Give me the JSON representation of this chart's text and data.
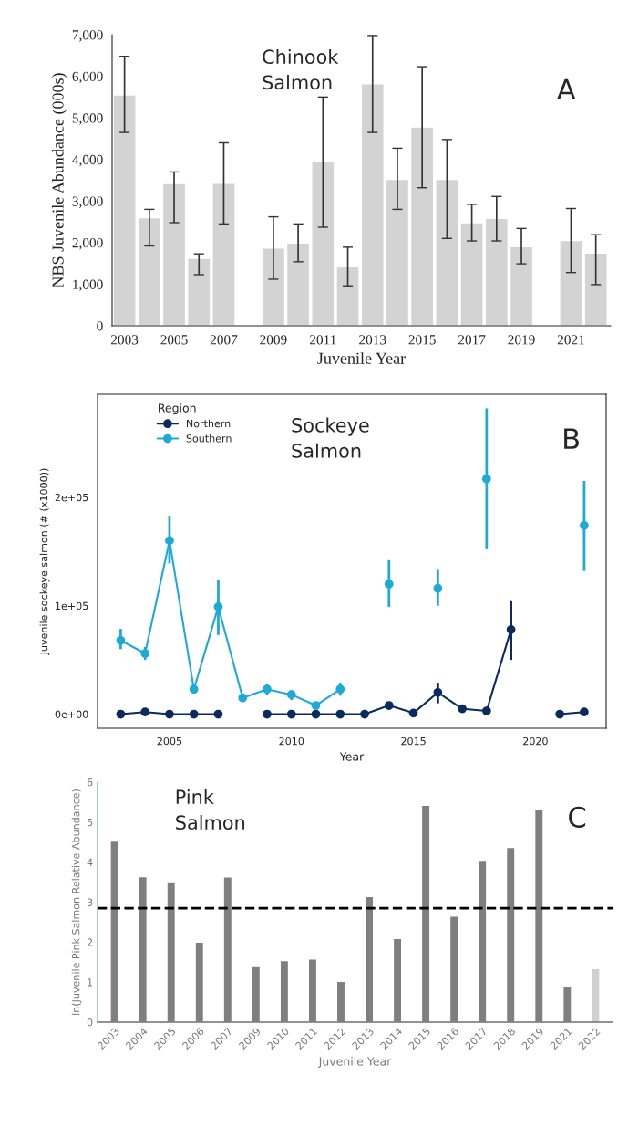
{
  "chart_data": [
    {
      "type": "bar",
      "xlabel": "Juvenile Year",
      "ylabel": "NBS Juvenile Abundance (000s)",
      "annotations": [
        "Chinook\nSalmon",
        "A"
      ],
      "x": [
        2003,
        2004,
        2005,
        2006,
        2007,
        2009,
        2010,
        2011,
        2012,
        2013,
        2014,
        2015,
        2016,
        2017,
        2018,
        2019,
        2021,
        2022
      ],
      "series": [
        {
          "color": "#d3d3d3",
          "values": [
            5550,
            2600,
            3420,
            1620,
            3430,
            1870,
            1990,
            3950,
            1420,
            5820,
            3520,
            4780,
            3520,
            2480,
            2580,
            1900,
            2050,
            1750
          ],
          "errors": [
            [
              4650,
              6480
            ],
            [
              1920,
              2800
            ],
            [
              2480,
              3700
            ],
            [
              1230,
              1730
            ],
            [
              2450,
              4400
            ],
            [
              1120,
              2620
            ],
            [
              1540,
              2450
            ],
            [
              2370,
              5500
            ],
            [
              960,
              1890
            ],
            [
              4650,
              6980
            ],
            [
              2800,
              4270
            ],
            [
              3320,
              6230
            ],
            [
              2100,
              4480
            ],
            [
              2040,
              2920
            ],
            [
              2040,
              3110
            ],
            [
              1490,
              2340
            ],
            [
              1280,
              2820
            ],
            [
              990,
              2190
            ]
          ]
        }
      ],
      "xlim": [
        2002.5,
        2022.6
      ],
      "xticks": [
        2003,
        2005,
        2007,
        2009,
        2011,
        2013,
        2015,
        2017,
        2019,
        2021
      ],
      "ylim": [
        0,
        7000
      ],
      "yticks": [
        {
          "value": 0,
          "label": "0"
        },
        {
          "value": 1000,
          "label": "1,000"
        },
        {
          "value": 2000,
          "label": "2,000"
        },
        {
          "value": 3000,
          "label": "3,000"
        },
        {
          "value": 4000,
          "label": "4,000"
        },
        {
          "value": 5000,
          "label": "5,000"
        },
        {
          "value": 6000,
          "label": "6,000"
        },
        {
          "value": 7000,
          "label": "7,000"
        }
      ],
      "grid": false,
      "legend": false
    },
    {
      "type": "line",
      "xlabel": "Year",
      "ylabel": "Juvenile sockeye salmon (# (x1000))",
      "legend_title": "Region",
      "annotations": [
        "Sockeye\nSalmon",
        "B"
      ],
      "x": [
        2003,
        2004,
        2005,
        2006,
        2007,
        2008,
        2009,
        2010,
        2011,
        2012,
        2013,
        2014,
        2015,
        2016,
        2017,
        2018,
        2019,
        2020,
        2021,
        2022
      ],
      "series": [
        {
          "name": "Northern",
          "color": "#0b2a5e",
          "values": [
            0,
            2000,
            0,
            0,
            0,
            null,
            0,
            0,
            0,
            0,
            0,
            8000,
            1000,
            20000,
            5000,
            3000,
            78000,
            null,
            0,
            2000
          ],
          "errors": [
            null,
            null,
            null,
            null,
            null,
            null,
            null,
            null,
            null,
            null,
            null,
            null,
            null,
            [
              10000,
              29000
            ],
            null,
            null,
            [
              50000,
              105000
            ],
            null,
            null,
            null
          ]
        },
        {
          "name": "Southern",
          "color": "#1fa9d6",
          "values": [
            68000,
            56000,
            160000,
            23000,
            99000,
            15000,
            23000,
            18000,
            8000,
            23000,
            null,
            120000,
            null,
            116000,
            null,
            217000,
            null,
            null,
            null,
            174000
          ],
          "errors": [
            [
              60000,
              78600
            ],
            [
              50000,
              62000
            ],
            [
              139000,
              183000
            ],
            null,
            [
              73000,
              124000
            ],
            null,
            [
              18000,
              28000
            ],
            [
              13000,
              22000
            ],
            null,
            [
              17000,
              29000
            ],
            null,
            [
              99000,
              142000
            ],
            null,
            [
              100000,
              133000
            ],
            null,
            [
              152000,
              282000
            ],
            null,
            null,
            null,
            [
              132000,
              215000
            ]
          ]
        }
      ],
      "xlim": [
        2002.05,
        2022.9
      ],
      "xticks": [
        2005,
        2010,
        2015,
        2020
      ],
      "ylim": [
        -13000,
        295000
      ],
      "yticks": [
        {
          "value": 0,
          "label": "0e+00"
        },
        {
          "value": 100000,
          "label": "1e+05"
        },
        {
          "value": 200000,
          "label": "2e+05"
        }
      ],
      "marker": "circle",
      "line_style": "solid",
      "grid": false,
      "legend": "top left"
    },
    {
      "type": "bar",
      "xlabel": "Juvenile Year",
      "ylabel": "ln(Juvenile Pink Salmon Relative Abundance)",
      "annotations": [
        "Pink\nSalmon",
        "C"
      ],
      "categories": [
        "2003",
        "2004",
        "2005",
        "2006",
        "2007",
        "2009",
        "2010",
        "2011",
        "2012",
        "2013",
        "2014",
        "2015",
        "2016",
        "2017",
        "2018",
        "2019",
        "2021",
        "2022"
      ],
      "values": [
        4.53,
        3.64,
        3.51,
        2.0,
        3.63,
        1.39,
        1.54,
        1.58,
        1.02,
        3.14,
        2.09,
        5.42,
        2.65,
        4.05,
        4.37,
        5.31,
        0.9,
        1.34
      ],
      "colors": [
        "#7f7f7f",
        "#7f7f7f",
        "#7f7f7f",
        "#7f7f7f",
        "#7f7f7f",
        "#7f7f7f",
        "#7f7f7f",
        "#7f7f7f",
        "#7f7f7f",
        "#7f7f7f",
        "#7f7f7f",
        "#7f7f7f",
        "#7f7f7f",
        "#7f7f7f",
        "#7f7f7f",
        "#7f7f7f",
        "#7f7f7f",
        "#d0d0d0"
      ],
      "ylim": [
        0,
        6
      ],
      "yticks": [
        0,
        1,
        2,
        3,
        4,
        5,
        6
      ],
      "ref_lines": [
        {
          "axis": "y",
          "value": 2.85,
          "color": "#000000",
          "line_style": "dashed"
        }
      ],
      "grid": false,
      "legend": false
    }
  ]
}
